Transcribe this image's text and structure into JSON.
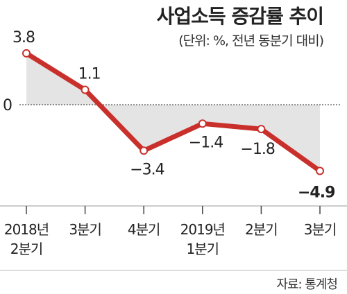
{
  "chart_data": {
    "type": "line",
    "title": "사업소득 증감률 추이",
    "subtitle": "(단위: %, 전년 동분기 대비)",
    "source": "자료: 통계청",
    "x": [
      "2018년 2분기",
      "3분기",
      "4분기",
      "2019년 1분기",
      "2분기",
      "3분기"
    ],
    "x_lines": [
      [
        "2018년",
        "2분기"
      ],
      [
        "3분기"
      ],
      [
        "4분기"
      ],
      [
        "2019년",
        "1분기"
      ],
      [
        "2분기"
      ],
      [
        "3분기"
      ]
    ],
    "series": [
      {
        "values": [
          3.8,
          1.1,
          -3.4,
          -1.4,
          -1.8,
          -4.9
        ]
      }
    ],
    "data_labels": [
      "3.8",
      "1.1",
      "−3.4",
      "−1.4",
      "−1.8",
      "−4.9"
    ],
    "y_tick_labels": [
      "0"
    ],
    "highlight_last": true,
    "colors": {
      "line": "#c9302c",
      "fill": "#e4e4e4",
      "highlight": "#d0322d",
      "text": "#222222"
    }
  }
}
